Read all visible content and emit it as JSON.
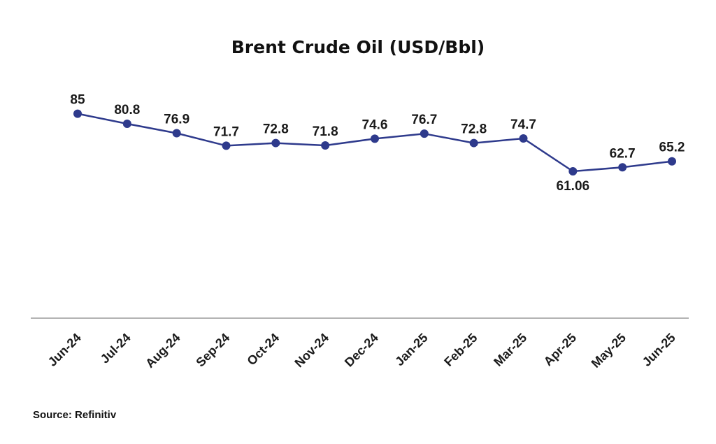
{
  "chart_data": {
    "type": "line",
    "title": "Brent  Crude Oil (USD/Bbl)",
    "xlabel": "",
    "ylabel": "",
    "categories": [
      "Jun-24",
      "Jul-24",
      "Aug-24",
      "Sep-24",
      "Oct-24",
      "Nov-24",
      "Dec-24",
      "Jan-25",
      "Feb-25",
      "Mar-25",
      "Apr-25",
      "May-25",
      "Jun-25"
    ],
    "series": [
      {
        "values": [
          85,
          80.8,
          76.9,
          71.7,
          72.8,
          71.8,
          74.6,
          76.7,
          72.8,
          74.7,
          61.06,
          62.7,
          65.2
        ],
        "labels": [
          "85",
          "80.8",
          "76.9",
          "71.7",
          "72.8",
          "71.8",
          "74.6",
          "76.7",
          "72.8",
          "74.7",
          "61.06",
          "62.7",
          "65.2"
        ],
        "label_positions": [
          "above",
          "above",
          "above",
          "above",
          "above",
          "above",
          "above",
          "above",
          "above",
          "above",
          "below",
          "above",
          "above"
        ]
      }
    ],
    "ylim": [
      0,
      100
    ],
    "grid": false,
    "legend": "none",
    "line_color": "#2e3a8c"
  },
  "source": "Source: Refinitiv"
}
